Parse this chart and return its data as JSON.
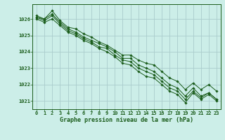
{
  "title": "Graphe pression niveau de la mer (hPa)",
  "bg_color": "#cceee8",
  "plot_bg_color": "#cceee8",
  "grid_color": "#aacccc",
  "line_color": "#1a5c1a",
  "marker_color": "#1a5c1a",
  "xlim": [
    -0.5,
    23.5
  ],
  "ylim": [
    1020.5,
    1026.9
  ],
  "xticks": [
    0,
    1,
    2,
    3,
    4,
    5,
    6,
    7,
    8,
    9,
    10,
    11,
    12,
    13,
    14,
    15,
    16,
    17,
    18,
    19,
    20,
    21,
    22,
    23
  ],
  "yticks": [
    1021,
    1022,
    1023,
    1024,
    1025,
    1026
  ],
  "series": [
    [
      1026.2,
      1026.0,
      1026.5,
      1025.9,
      1025.5,
      1025.4,
      1025.1,
      1024.9,
      1024.6,
      1024.4,
      1024.1,
      1023.8,
      1023.8,
      1023.5,
      1023.3,
      1023.2,
      1022.8,
      1022.4,
      1022.2,
      1021.7,
      1022.1,
      1021.7,
      1022.0,
      1021.6
    ],
    [
      1026.1,
      1025.9,
      1026.2,
      1025.7,
      1025.3,
      1025.1,
      1024.8,
      1024.6,
      1024.3,
      1024.2,
      1023.8,
      1023.5,
      1023.4,
      1023.0,
      1022.8,
      1022.6,
      1022.2,
      1021.8,
      1021.6,
      1021.1,
      1021.6,
      1021.2,
      1021.5,
      1021.1
    ],
    [
      1026.1,
      1026.0,
      1026.3,
      1025.8,
      1025.4,
      1025.2,
      1024.9,
      1024.7,
      1024.5,
      1024.3,
      1024.0,
      1023.6,
      1023.6,
      1023.2,
      1023.0,
      1022.8,
      1022.4,
      1022.0,
      1021.8,
      1021.3,
      1021.8,
      1021.3,
      1021.5,
      1021.1
    ],
    [
      1026.0,
      1025.8,
      1026.0,
      1025.6,
      1025.2,
      1025.0,
      1024.7,
      1024.5,
      1024.2,
      1024.0,
      1023.7,
      1023.3,
      1023.2,
      1022.8,
      1022.5,
      1022.4,
      1022.0,
      1021.6,
      1021.4,
      1020.9,
      1021.5,
      1021.1,
      1021.4,
      1021.0
    ]
  ]
}
